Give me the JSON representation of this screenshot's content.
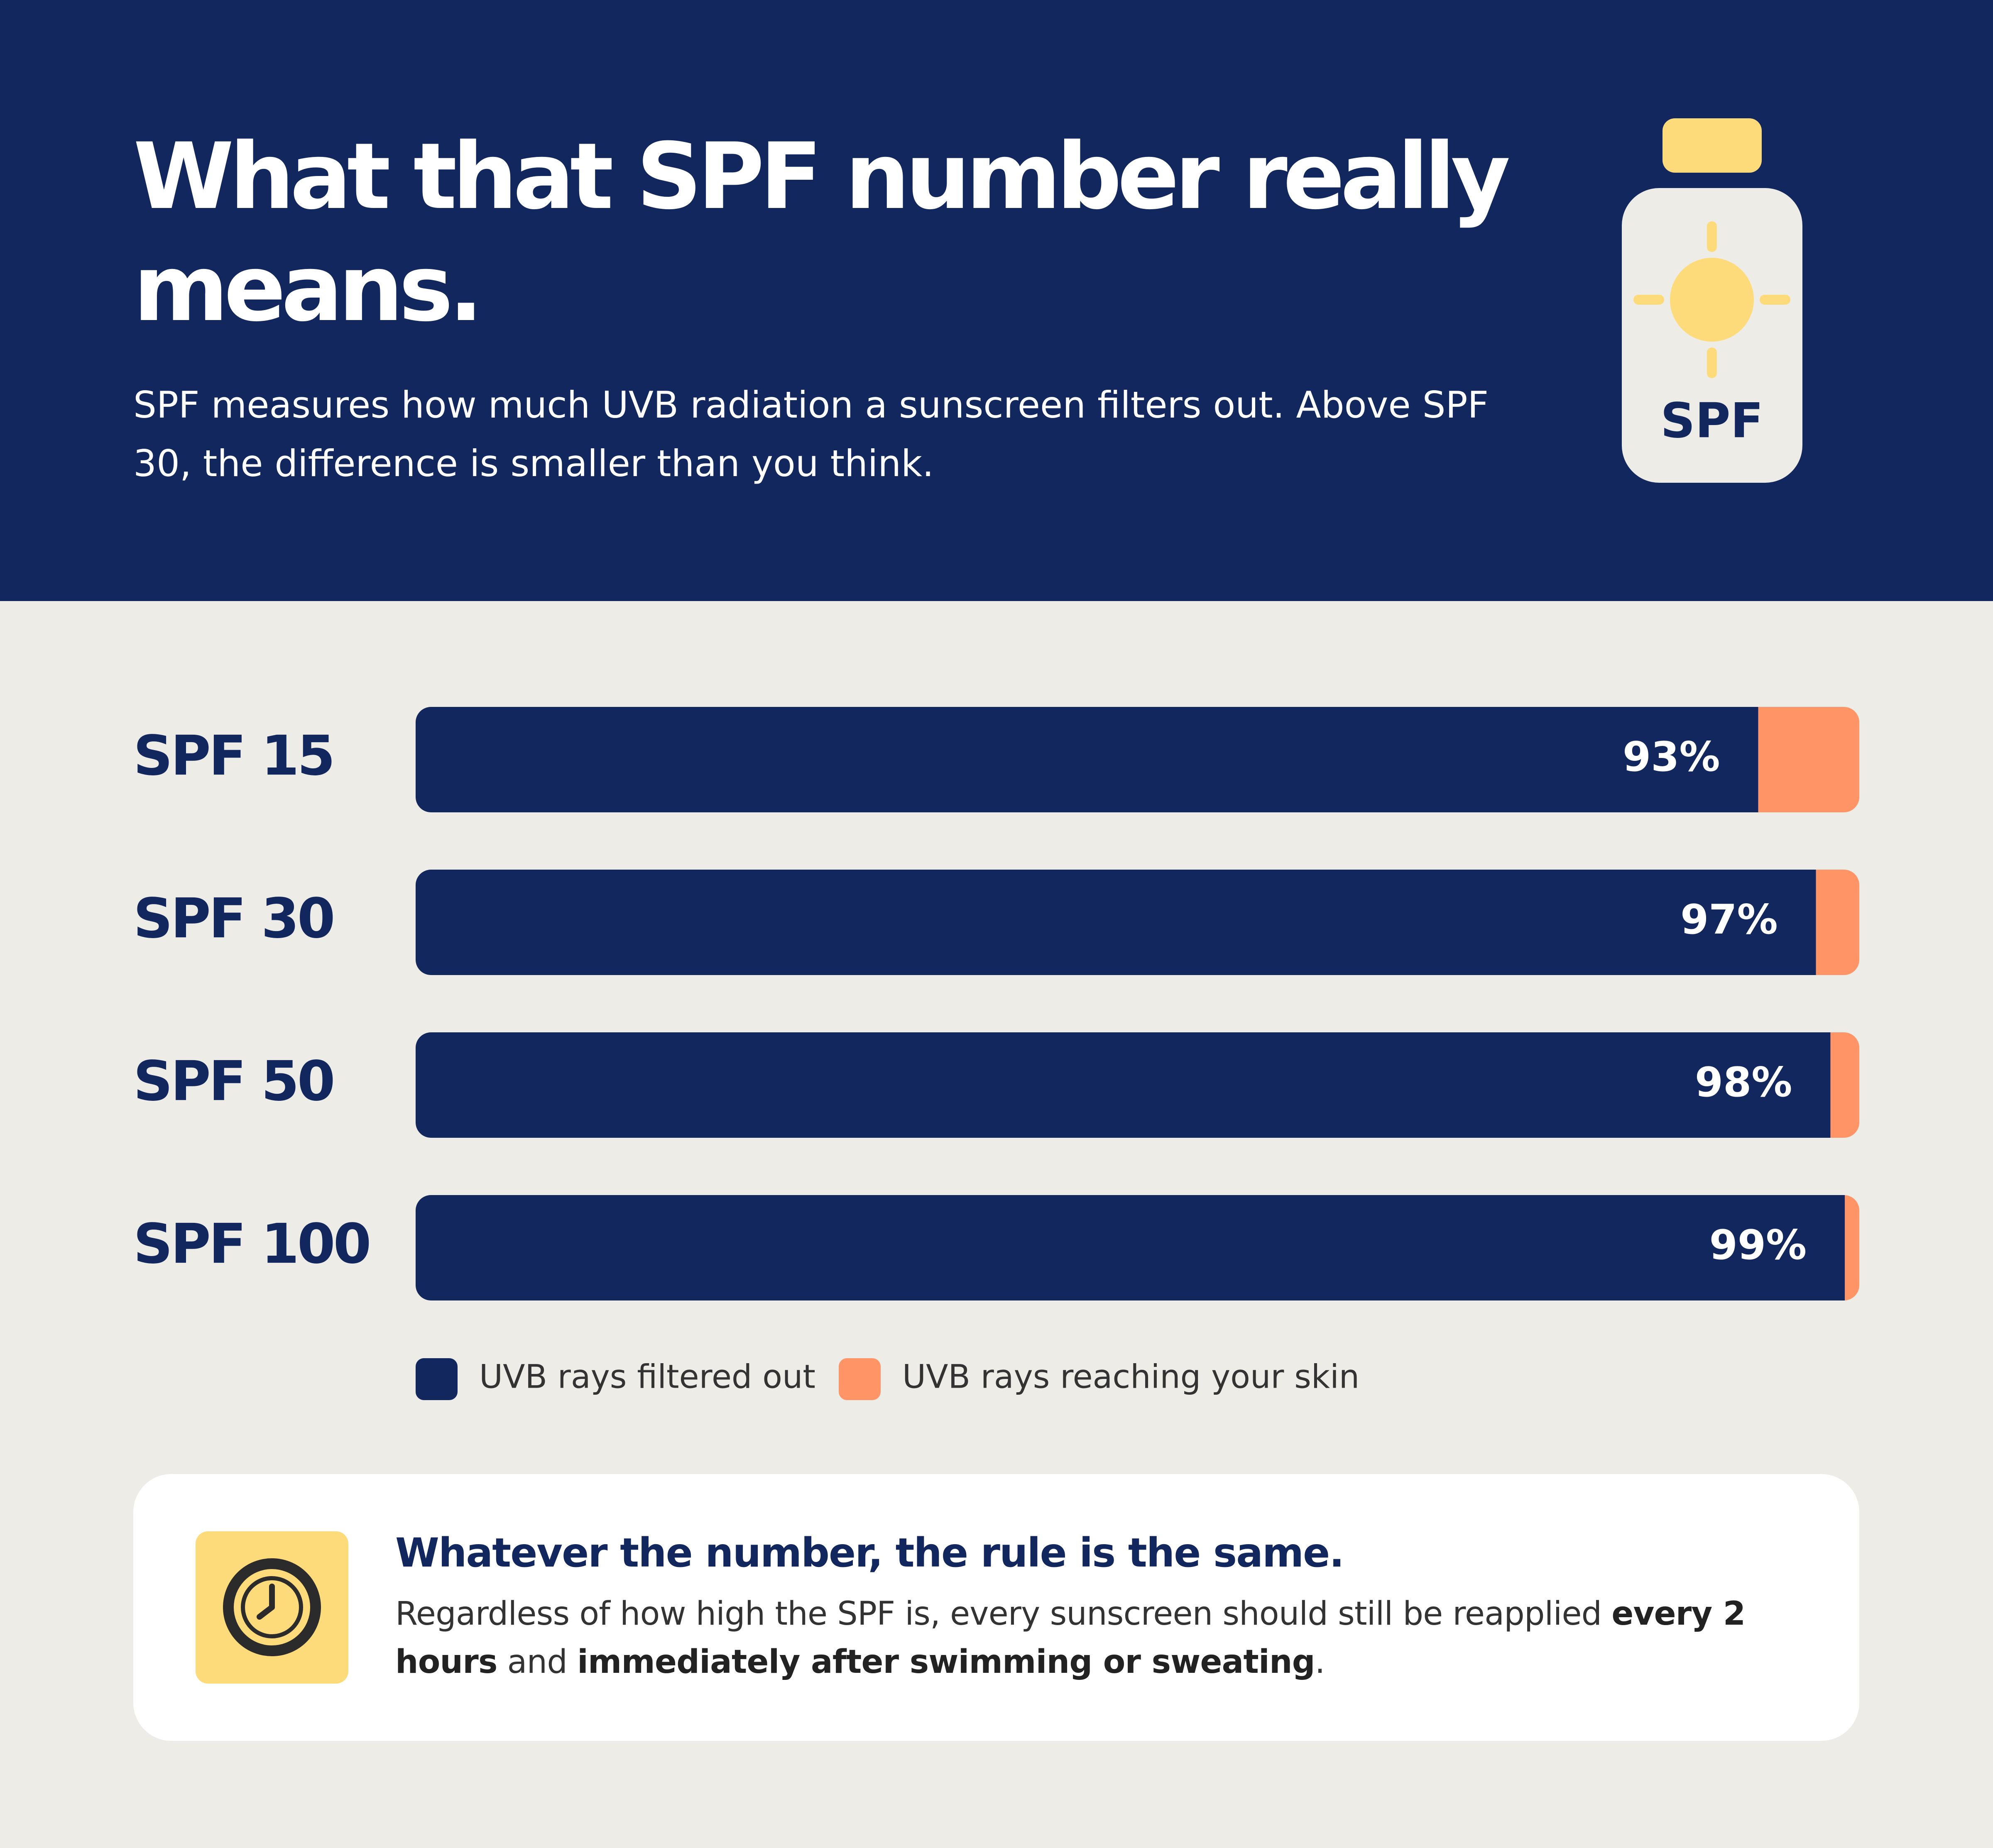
{
  "header": {
    "title": "What that SPF number really means.",
    "subtitle": "SPF measures how much UVB radiation a sunscreen filters out. Above SPF 30, the difference is smaller than you think.",
    "icon_label": "SPF"
  },
  "chart_data": {
    "type": "stacked-bar",
    "orientation": "horizontal",
    "categories": [
      "SPF 15",
      "SPF 30",
      "SPF 50",
      "SPF 100"
    ],
    "series": [
      {
        "name": "UVB rays filtered out",
        "color": "#13275f",
        "values": [
          93,
          97,
          98,
          99
        ],
        "value_labels": [
          "93%",
          "97%",
          "98%",
          "99%"
        ]
      },
      {
        "name": "UVB rays reaching your skin",
        "color": "#ff9466",
        "values": [
          7,
          3,
          2,
          1
        ]
      }
    ],
    "xlim": [
      0,
      100
    ]
  },
  "callout": {
    "title": "Whatever the number, the rule is the same.",
    "text": [
      {
        "text": "Regardless of how high the SPF is, every sunscreen should still be reapplied ",
        "bold": false
      },
      {
        "text": "every 2 hours",
        "bold": true
      },
      {
        "text": " and ",
        "bold": false
      },
      {
        "text": "immediately after swimming or sweating",
        "bold": true
      },
      {
        "text": ".",
        "bold": false
      }
    ]
  }
}
